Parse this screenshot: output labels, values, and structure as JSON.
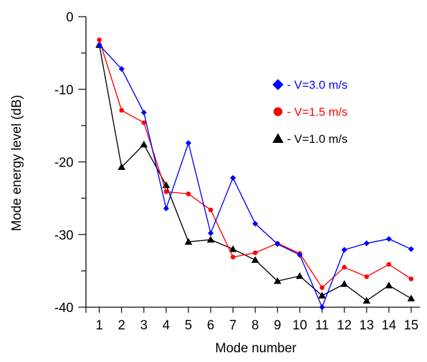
{
  "chart_data": {
    "type": "line",
    "xlabel": "Mode number",
    "ylabel": "Mode energy level (dB)",
    "x": [
      1,
      2,
      3,
      4,
      5,
      6,
      7,
      8,
      9,
      10,
      11,
      12,
      13,
      14,
      15
    ],
    "xlim": [
      0.4,
      15.4
    ],
    "ylim": [
      -40,
      0
    ],
    "y_ticks": [
      0,
      -10,
      -20,
      -30,
      -40
    ],
    "y_tick_labels": [
      "0",
      "-10",
      "-20",
      "-30",
      "-40"
    ],
    "x_tick_labels": [
      "1",
      "2",
      "3",
      "4",
      "5",
      "6",
      "7",
      "8",
      "9",
      "10",
      "11",
      "12",
      "13",
      "14",
      "15"
    ],
    "grid": false,
    "legend_position": "top-right",
    "series": [
      {
        "name": "- V=3.0 m/s",
        "color": "#0000ff",
        "marker": "diamond",
        "values": [
          -3.9,
          -7.2,
          -13.2,
          -26.4,
          -17.4,
          -29.8,
          -22.2,
          -28.5,
          -31.3,
          -32.8,
          -40.0,
          -32.1,
          -31.2,
          -30.6,
          -32.0
        ]
      },
      {
        "name": "- V=1.5 m/s",
        "color": "#ff0000",
        "marker": "circle",
        "values": [
          -3.2,
          -12.9,
          -14.6,
          -24.1,
          -24.4,
          -26.6,
          -33.1,
          -32.5,
          -31.2,
          -32.6,
          -37.3,
          -34.5,
          -35.8,
          -34.1,
          -36.1
        ]
      },
      {
        "name": "- V=1.0 m/s",
        "color": "#000000",
        "marker": "triangle",
        "values": [
          -3.9,
          -20.7,
          -17.6,
          -23.2,
          -31.0,
          -30.7,
          -32.0,
          -33.5,
          -36.4,
          -35.7,
          -38.4,
          -36.8,
          -39.1,
          -37.0,
          -38.8
        ]
      }
    ]
  }
}
